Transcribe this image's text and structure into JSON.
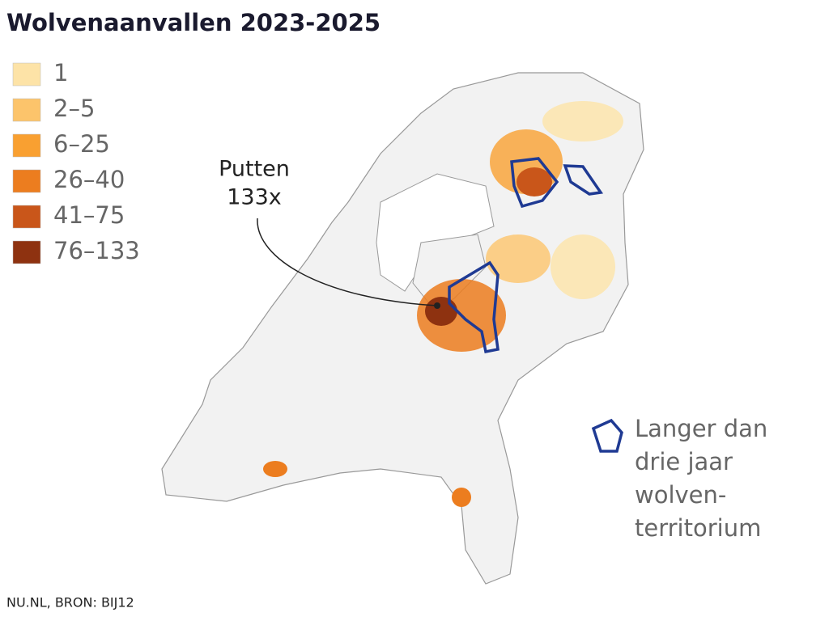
{
  "title": "Wolvenaanvallen 2023-2025",
  "legend": [
    {
      "label": "1",
      "color": "#fde3a7"
    },
    {
      "label": "2–5",
      "color": "#fcc46b"
    },
    {
      "label": "6–25",
      "color": "#f9a031"
    },
    {
      "label": "26–40",
      "color": "#ec7d1f"
    },
    {
      "label": "41–75",
      "color": "#c9561a"
    },
    {
      "label": "76–133",
      "color": "#8e3210"
    }
  ],
  "annotation": {
    "place": "Putten",
    "count": "133x"
  },
  "territory_legend": [
    "Langer dan",
    "drie jaar",
    "wolven-",
    "territorium"
  ],
  "territory_color": "#1f3a93",
  "source": "NU.NL, BRON: BIJ12"
}
